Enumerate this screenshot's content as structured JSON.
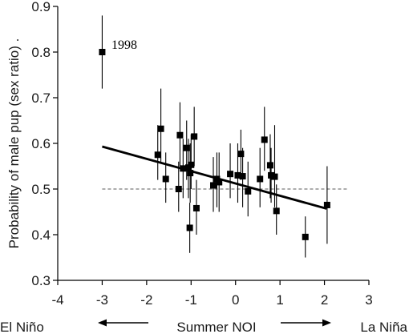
{
  "chart_data": {
    "type": "scatter",
    "title": "",
    "xlabel": "Summer NOI",
    "ylabel": "Probability of male pup (sex ratio) .",
    "xlim": [
      -4,
      3
    ],
    "ylim": [
      0.3,
      0.9
    ],
    "xticks": [
      "-4",
      "-3",
      "-2",
      "-1",
      "0",
      "1",
      "2",
      "3"
    ],
    "yticks": [
      "0.3",
      "0.4",
      "0.5",
      "0.6",
      "0.7",
      "0.8",
      "0.9"
    ],
    "grid": false,
    "legend": "none",
    "points": [
      {
        "x": -3.0,
        "y": 0.8,
        "lo": 0.72,
        "hi": 0.88
      },
      {
        "x": -1.75,
        "y": 0.575,
        "lo": 0.52,
        "hi": 0.64
      },
      {
        "x": -1.68,
        "y": 0.632,
        "lo": 0.56,
        "hi": 0.72
      },
      {
        "x": -1.57,
        "y": 0.522,
        "lo": 0.47,
        "hi": 0.58
      },
      {
        "x": -1.28,
        "y": 0.5,
        "lo": 0.45,
        "hi": 0.56
      },
      {
        "x": -1.25,
        "y": 0.618,
        "lo": 0.55,
        "hi": 0.69
      },
      {
        "x": -1.18,
        "y": 0.545,
        "lo": 0.48,
        "hi": 0.61
      },
      {
        "x": -1.1,
        "y": 0.59,
        "lo": 0.52,
        "hi": 0.65
      },
      {
        "x": -1.06,
        "y": 0.547,
        "lo": 0.48,
        "hi": 0.61
      },
      {
        "x": -1.03,
        "y": 0.415,
        "lo": 0.36,
        "hi": 0.47
      },
      {
        "x": -1.02,
        "y": 0.535,
        "lo": 0.47,
        "hi": 0.6
      },
      {
        "x": -1.0,
        "y": 0.553,
        "lo": 0.5,
        "hi": 0.62
      },
      {
        "x": -0.93,
        "y": 0.615,
        "lo": 0.55,
        "hi": 0.68
      },
      {
        "x": -0.88,
        "y": 0.458,
        "lo": 0.4,
        "hi": 0.52
      },
      {
        "x": -0.5,
        "y": 0.508,
        "lo": 0.45,
        "hi": 0.57
      },
      {
        "x": -0.42,
        "y": 0.522,
        "lo": 0.46,
        "hi": 0.58
      },
      {
        "x": -0.37,
        "y": 0.515,
        "lo": 0.45,
        "hi": 0.58
      },
      {
        "x": -0.12,
        "y": 0.533,
        "lo": 0.48,
        "hi": 0.6
      },
      {
        "x": 0.05,
        "y": 0.53,
        "lo": 0.47,
        "hi": 0.6
      },
      {
        "x": 0.12,
        "y": 0.577,
        "lo": 0.52,
        "hi": 0.63
      },
      {
        "x": 0.16,
        "y": 0.528,
        "lo": 0.46,
        "hi": 0.59
      },
      {
        "x": 0.28,
        "y": 0.495,
        "lo": 0.44,
        "hi": 0.56
      },
      {
        "x": 0.55,
        "y": 0.522,
        "lo": 0.46,
        "hi": 0.59
      },
      {
        "x": 0.65,
        "y": 0.608,
        "lo": 0.54,
        "hi": 0.68
      },
      {
        "x": 0.78,
        "y": 0.552,
        "lo": 0.48,
        "hi": 0.62
      },
      {
        "x": 0.8,
        "y": 0.53,
        "lo": 0.47,
        "hi": 0.59
      },
      {
        "x": 0.88,
        "y": 0.527,
        "lo": 0.46,
        "hi": 0.64
      },
      {
        "x": 0.92,
        "y": 0.452,
        "lo": 0.4,
        "hi": 0.51
      },
      {
        "x": 1.57,
        "y": 0.395,
        "lo": 0.35,
        "hi": 0.44
      },
      {
        "x": 2.06,
        "y": 0.465,
        "lo": 0.38,
        "hi": 0.55
      }
    ],
    "trend_line": {
      "x": [
        -3.0,
        2.05
      ],
      "y": [
        0.593,
        0.457
      ]
    },
    "reference_line": {
      "y": 0.5,
      "x": [
        -3.0,
        2.55
      ],
      "style": "dashed"
    },
    "annotations": {
      "point_1998": "1998",
      "left_label": "El Niño",
      "right_label": "La Niña"
    }
  }
}
